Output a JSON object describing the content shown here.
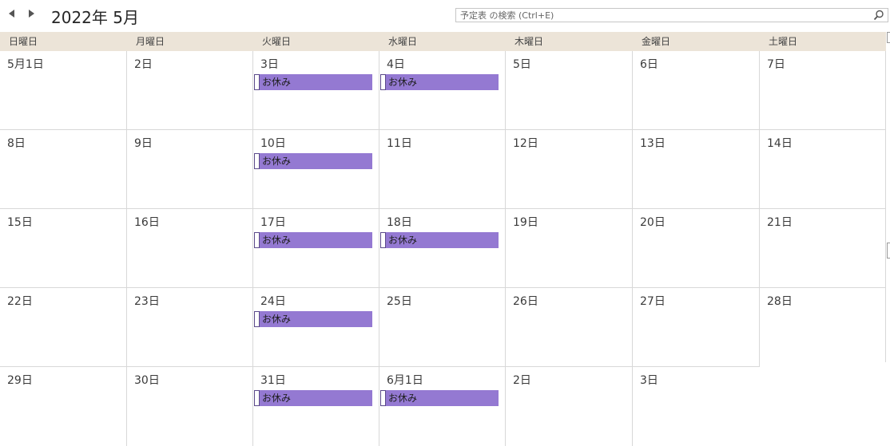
{
  "header": {
    "title": "2022年 5月",
    "search_placeholder": "予定表 の検索 (Ctrl+E)"
  },
  "weekdays": [
    "日曜日",
    "月曜日",
    "火曜日",
    "水曜日",
    "木曜日",
    "金曜日",
    "土曜日"
  ],
  "weeks": [
    [
      "5月1日",
      "2日",
      "3日",
      "4日",
      "5日",
      "6日",
      "7日"
    ],
    [
      "8日",
      "9日",
      "10日",
      "11日",
      "12日",
      "13日",
      "14日"
    ],
    [
      "15日",
      "16日",
      "17日",
      "18日",
      "19日",
      "20日",
      "21日"
    ],
    [
      "22日",
      "23日",
      "24日",
      "25日",
      "26日",
      "27日",
      "28日"
    ],
    [
      "29日",
      "30日",
      "31日",
      "6月1日",
      "2日",
      "3日",
      ""
    ]
  ],
  "events": [
    {
      "week": 0,
      "day": 2,
      "label": "お休み"
    },
    {
      "week": 0,
      "day": 3,
      "label": "お休み"
    },
    {
      "week": 1,
      "day": 2,
      "label": "お休み"
    },
    {
      "week": 2,
      "day": 2,
      "label": "お休み"
    },
    {
      "week": 2,
      "day": 3,
      "label": "お休み"
    },
    {
      "week": 3,
      "day": 2,
      "label": "お休み"
    },
    {
      "week": 4,
      "day": 2,
      "label": "お休み"
    },
    {
      "week": 4,
      "day": 3,
      "label": "お休み"
    }
  ],
  "colors": {
    "event": "#9479d2",
    "header_bg": "#ece4d8"
  }
}
